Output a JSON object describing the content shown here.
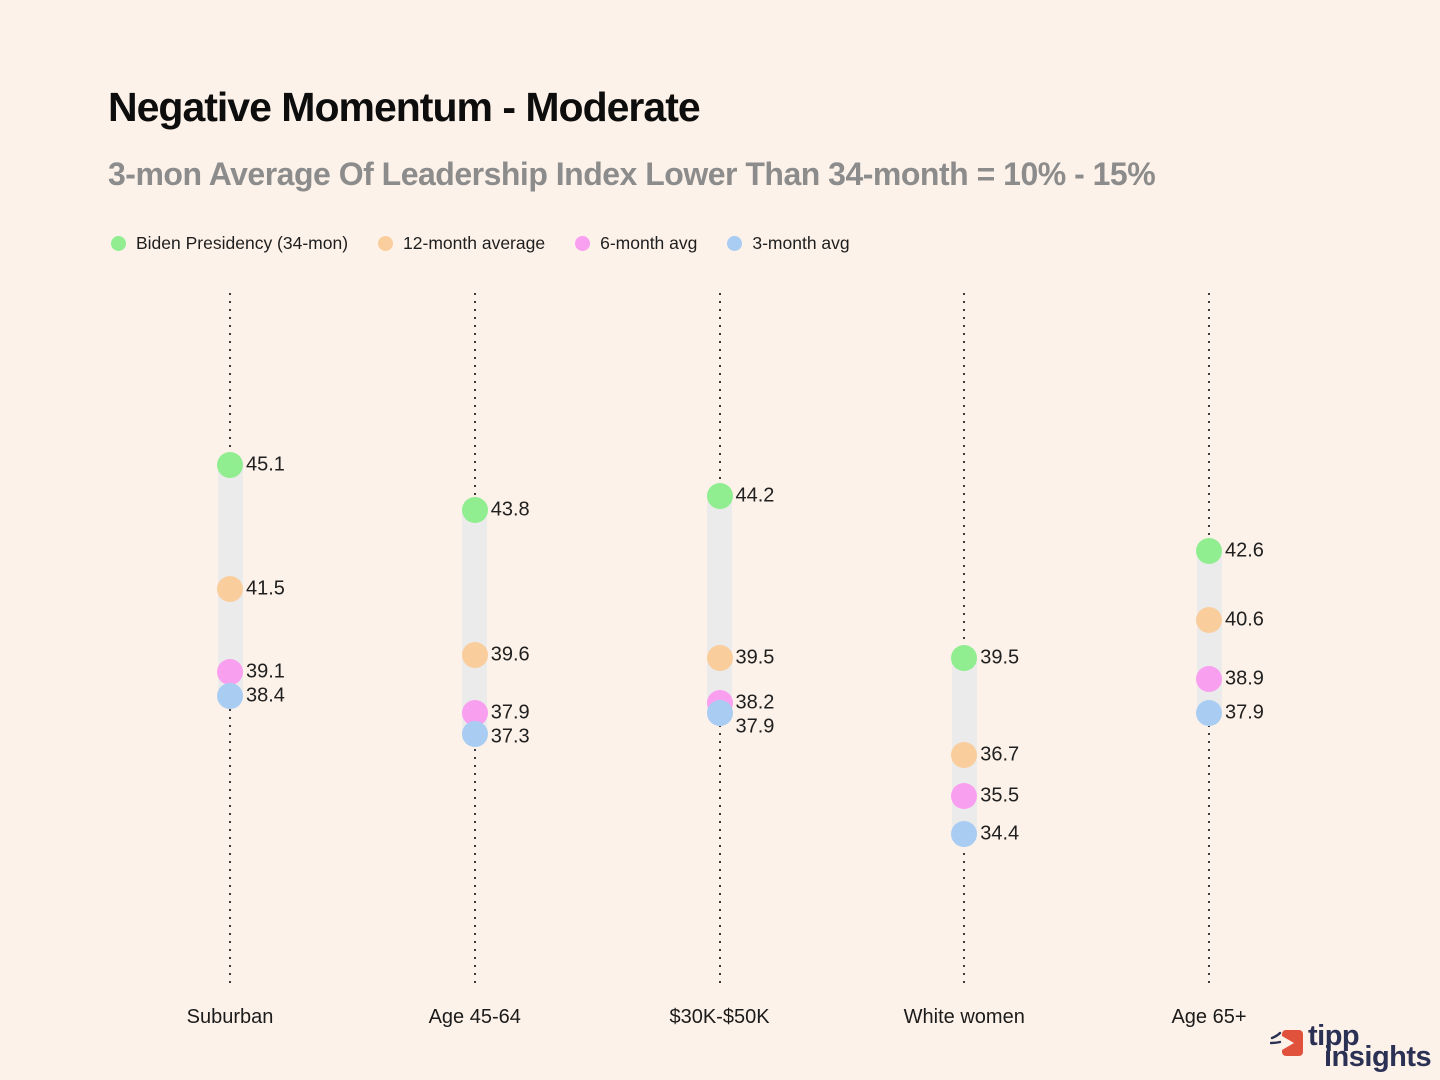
{
  "chart_data": {
    "type": "scatter",
    "variant": "dot-range-columns",
    "title": "Negative Momentum - Moderate",
    "subtitle": "3-mon Average Of Leadership Index Lower Than 34-month = 10% - 15%",
    "legend_position": "top-left",
    "grid": false,
    "axis_visible": false,
    "categories": [
      "Suburban",
      "Age 45-64",
      "$30K-$50K",
      "White women",
      "Age 65+"
    ],
    "series": [
      {
        "name": "Biden Presidency (34-mon)",
        "color": "#90EE90",
        "values": [
          45.1,
          43.8,
          44.2,
          39.5,
          42.6
        ]
      },
      {
        "name": "12-month average",
        "color": "#FACD9C",
        "values": [
          41.5,
          39.6,
          39.5,
          36.7,
          40.6
        ]
      },
      {
        "name": "6-month avg",
        "color": "#F99FF0",
        "values": [
          39.1,
          37.9,
          38.2,
          35.5,
          38.9
        ]
      },
      {
        "name": "3-month avg",
        "color": "#A9CDF2",
        "values": [
          38.4,
          37.3,
          37.9,
          34.4,
          37.9
        ]
      }
    ],
    "value_label_decimals": 1,
    "approx_value_range": [
      34.4,
      45.1
    ]
  },
  "branding": {
    "line1": "tipp",
    "line2": "insights",
    "red": "#E1523D",
    "navy": "#2B3154"
  },
  "colors": {
    "background": "#FDF2E9",
    "band": "#EBEBEB",
    "dotted_line": "#3C3C3C",
    "title": "#0D0D0D",
    "subtitle": "#8C8C8C",
    "label": "#202020"
  }
}
